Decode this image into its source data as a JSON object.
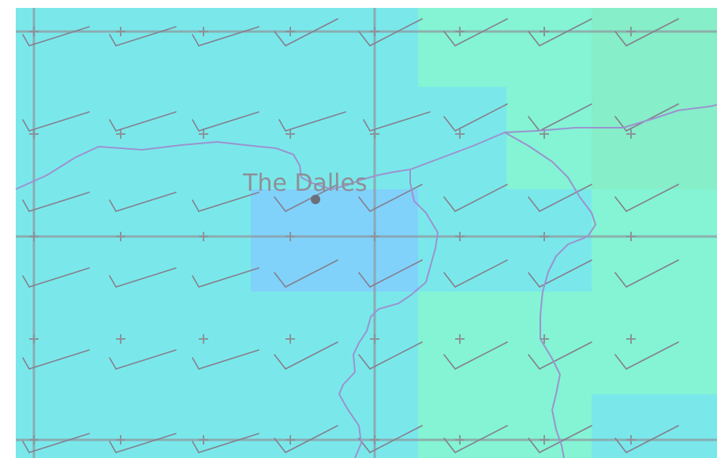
{
  "map": {
    "city": {
      "name": "The Dalles",
      "marker_color": "#6b6f7a"
    },
    "colors": {
      "background": "#7ae8ea",
      "light_green": "#84f4d4",
      "green": "#86eec8",
      "blue": "#80d2fa",
      "grid": "#8f9aa0",
      "barb": "#857f8e",
      "border": "#9b93cf"
    },
    "icons": {
      "wind_barb": "wind-barb-icon",
      "grid_marker": "plus-marker-icon",
      "city_marker": "city-dot-icon"
    }
  }
}
